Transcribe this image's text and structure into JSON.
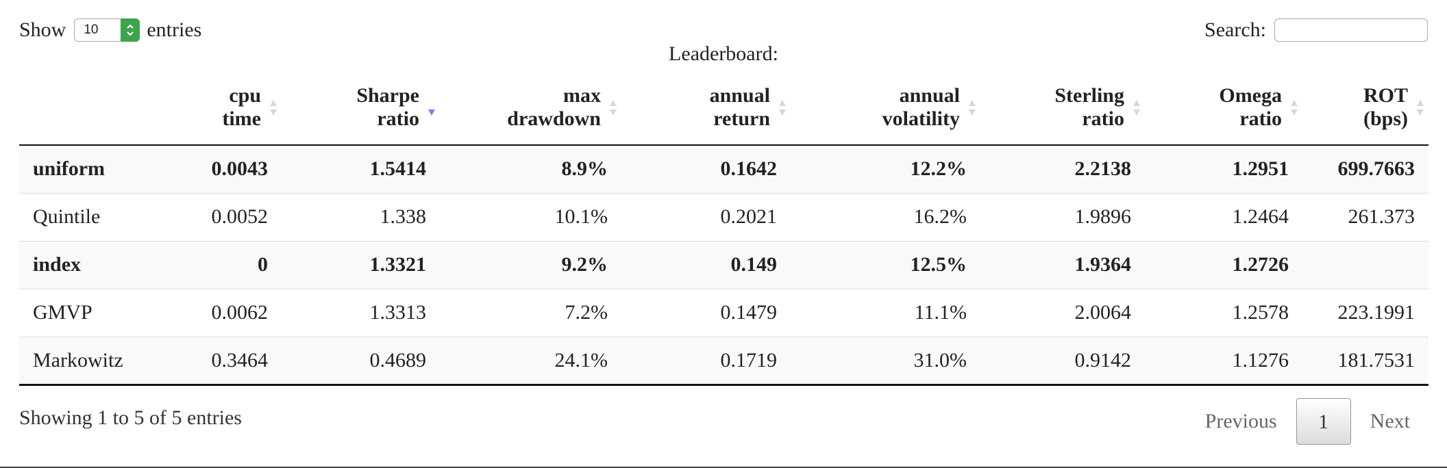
{
  "length_control": {
    "prefix": "Show",
    "selected": "10",
    "suffix": "entries"
  },
  "search": {
    "label": "Search:",
    "value": "",
    "placeholder": ""
  },
  "caption": "Leaderboard:",
  "columns": [
    {
      "line1": "",
      "line2": "",
      "sortable": false
    },
    {
      "line1": "cpu",
      "line2": "time",
      "sortable": true,
      "sort": "none"
    },
    {
      "line1": "Sharpe",
      "line2": "ratio",
      "sortable": true,
      "sort": "descending"
    },
    {
      "line1": "max",
      "line2": "drawdown",
      "sortable": true,
      "sort": "none"
    },
    {
      "line1": "annual",
      "line2": "return",
      "sortable": true,
      "sort": "none"
    },
    {
      "line1": "annual",
      "line2": "volatility",
      "sortable": true,
      "sort": "none"
    },
    {
      "line1": "Sterling",
      "line2": "ratio",
      "sortable": true,
      "sort": "none"
    },
    {
      "line1": "Omega",
      "line2": "ratio",
      "sortable": true,
      "sort": "none"
    },
    {
      "line1": "ROT",
      "line2": "(bps)",
      "sortable": true,
      "sort": "none"
    }
  ],
  "rows": [
    {
      "bold": true,
      "cells": [
        "uniform",
        "0.0043",
        "1.5414",
        "8.9%",
        "0.1642",
        "12.2%",
        "2.2138",
        "1.2951",
        "699.7663"
      ]
    },
    {
      "bold": false,
      "cells": [
        "Quintile",
        "0.0052",
        "1.338",
        "10.1%",
        "0.2021",
        "16.2%",
        "1.9896",
        "1.2464",
        "261.373"
      ]
    },
    {
      "bold": true,
      "cells": [
        "index",
        "0",
        "1.3321",
        "9.2%",
        "0.149",
        "12.5%",
        "1.9364",
        "1.2726",
        ""
      ]
    },
    {
      "bold": false,
      "cells": [
        "GMVP",
        "0.0062",
        "1.3313",
        "7.2%",
        "0.1479",
        "11.1%",
        "2.0064",
        "1.2578",
        "223.1991"
      ]
    },
    {
      "bold": false,
      "cells": [
        "Markowitz",
        "0.3464",
        "0.4689",
        "24.1%",
        "0.1719",
        "31.0%",
        "0.9142",
        "1.1276",
        "181.7531"
      ]
    }
  ],
  "info": "Showing 1 to 5 of 5 entries",
  "pagination": {
    "previous": "Previous",
    "current": "1",
    "next": "Next"
  },
  "colors": {
    "sort_active": "#7b83e0",
    "sort_inactive": "#d8d8d8",
    "stepper": "#3fa34d",
    "odd_row": "#f9f9f9"
  }
}
